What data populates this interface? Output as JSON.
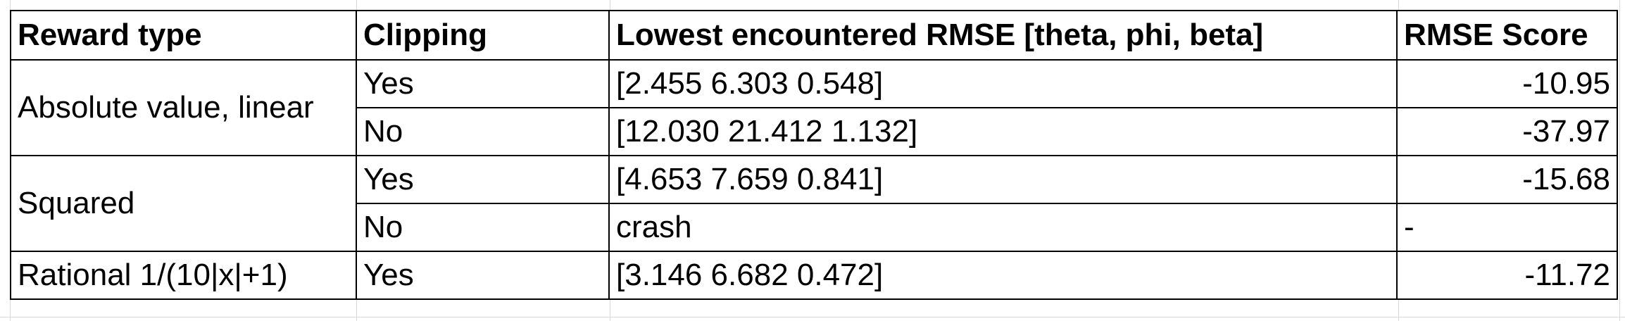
{
  "table": {
    "headers": [
      "Reward type",
      "Clipping",
      "Lowest encountered RMSE [theta, phi, beta]",
      "RMSE Score"
    ],
    "groups": [
      {
        "reward_type": "Absolute value, linear",
        "rows": [
          {
            "clipping": "Yes",
            "rmse": "[2.455 6.303 0.548]",
            "score": "-10.95"
          },
          {
            "clipping": "No",
            "rmse": "[12.030 21.412 1.132]",
            "score": "-37.97"
          }
        ]
      },
      {
        "reward_type": "Squared",
        "rows": [
          {
            "clipping": "Yes",
            "rmse": "[4.653 7.659 0.841]",
            "score": "-15.68"
          },
          {
            "clipping": "No",
            "rmse": "crash",
            "score": "-"
          }
        ]
      },
      {
        "reward_type": "Rational 1/(10|x|+1)",
        "rows": [
          {
            "clipping": "Yes",
            "rmse": "[3.146 6.682 0.472]",
            "score": "-11.72"
          }
        ]
      }
    ]
  },
  "colors": {
    "border": "#000000",
    "gridline": "#d9d9d9",
    "background": "#ffffff"
  }
}
